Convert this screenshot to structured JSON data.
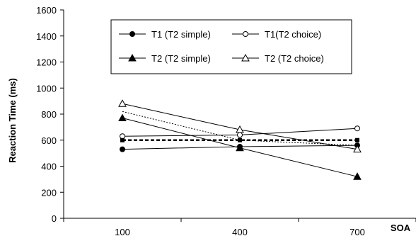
{
  "chart_data": {
    "type": "line",
    "ylabel": "Reaction Time (ms)",
    "xlabel": "SOA",
    "ylim": [
      0,
      1600
    ],
    "yticks": [
      0,
      200,
      400,
      600,
      800,
      1000,
      1200,
      1400,
      1600
    ],
    "categories": [
      "100",
      "400",
      "700"
    ],
    "grid": false,
    "legend_position": "top-right",
    "series": [
      {
        "name": "T1 (T2 simple)",
        "marker": "circle-filled",
        "line": "solid",
        "values": [
          530,
          550,
          560
        ]
      },
      {
        "name": "T1(T2 choice)",
        "marker": "circle-open",
        "line": "solid",
        "values": [
          630,
          640,
          690
        ]
      },
      {
        "name": "T2 (T2 simple)",
        "marker": "triangle-filled",
        "line": "solid",
        "values": [
          770,
          540,
          320
        ]
      },
      {
        "name": "T2 (T2 choice)",
        "marker": "triangle-open",
        "line": "solid",
        "values": [
          880,
          680,
          530
        ]
      },
      {
        "name": "",
        "marker": "none",
        "line": "dotted",
        "values": [
          820,
          600,
          560
        ]
      },
      {
        "name": "",
        "marker": "square-filled",
        "line": "dashed-bold",
        "values": [
          600,
          600,
          600
        ]
      }
    ]
  }
}
